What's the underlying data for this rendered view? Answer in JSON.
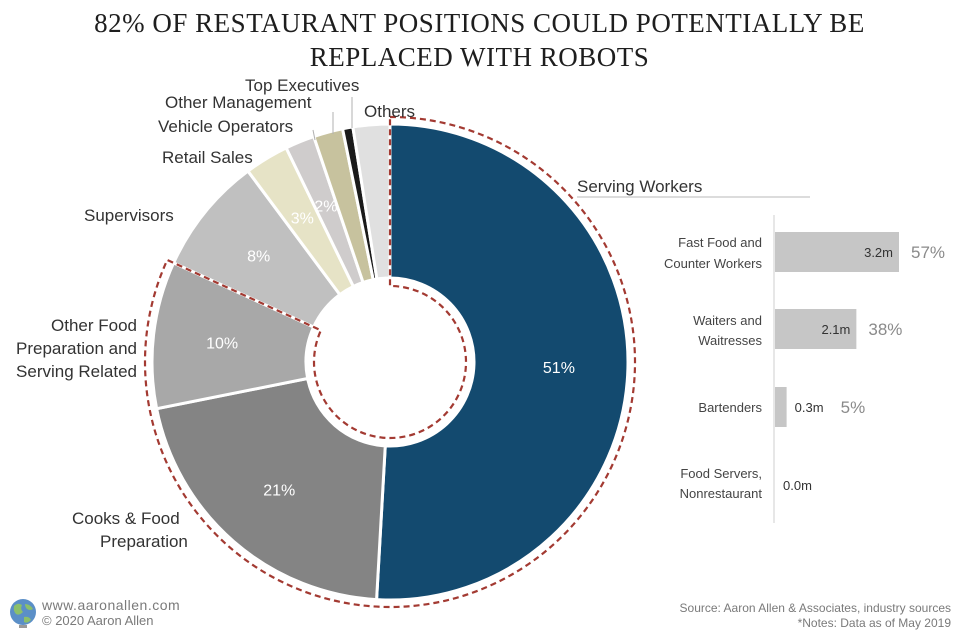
{
  "title": {
    "line1": "82% OF RESTAURANT POSITIONS COULD POTENTIALLY BE",
    "line2": "REPLACED WITH ROBOTS"
  },
  "chart_data": [
    {
      "type": "pie",
      "subtype": "donut",
      "categories": [
        "Serving Workers",
        "Cooks & Food Preparation",
        "Other Food Preparation and Serving Related",
        "Supervisors",
        "Retail Sales",
        "Vehicle Operators",
        "Other Management",
        "Top Executives",
        "Others"
      ],
      "values": [
        51,
        21,
        10,
        8,
        3,
        2,
        2,
        0.7,
        2.5
      ],
      "value_labels": [
        "51%",
        "21%",
        "10%",
        "8%",
        "3%",
        "2%",
        "",
        "",
        ""
      ],
      "colors": [
        "#134a6f",
        "#848484",
        "#a8a8a8",
        "#c0c0c0",
        "#e6e3c6",
        "#cfcccc",
        "#c7c29e",
        "#1a1a1a",
        "#e0e0e0"
      ],
      "highlight": "Dashed outline around Serving Workers, Cooks & Food Preparation and Other Food Preparation and Serving Related (82%)"
    },
    {
      "type": "bar",
      "orientation": "horizontal",
      "title": "Serving Workers",
      "categories": [
        "Fast Food and Counter Workers",
        "Waiters and Waitresses",
        "Bartenders",
        "Food Servers, Nonrestaurant"
      ],
      "values": [
        3.2,
        2.1,
        0.3,
        0.0
      ],
      "value_labels": [
        "3.2m",
        "2.1m",
        "0.3m",
        "0.0m"
      ],
      "share_labels": [
        "57%",
        "38%",
        "5%",
        ""
      ],
      "unit": "millions",
      "bar_color": "#c6c6c6"
    }
  ],
  "pie_labels": {
    "serving": "Serving Workers",
    "cooks_1": "Cooks & Food",
    "cooks_2": "Preparation",
    "other_food_1": "Other Food",
    "other_food_2": "Preparation and",
    "other_food_3": "Serving Related",
    "supervisors": "Supervisors",
    "retail": "Retail Sales",
    "vehicle": "Vehicle Operators",
    "other_mgmt": "Other Management",
    "top_exec": "Top Executives",
    "others": "Others"
  },
  "bar_labels": {
    "fast_food_1": "Fast Food and",
    "fast_food_2": "Counter Workers",
    "waiters_1": "Waiters and",
    "waiters_2": "Waitresses",
    "bartenders": "Bartenders",
    "food_servers_1": "Food Servers,",
    "food_servers_2": "Nonrestaurant"
  },
  "footer": {
    "website": "www.aaronallen.com",
    "copyright": "© 2020 Aaron Allen",
    "source": "Source: Aaron Allen & Associates, industry sources",
    "notes": "*Notes: Data as of May 2019"
  },
  "icons": {
    "logo": "globe-icon"
  }
}
